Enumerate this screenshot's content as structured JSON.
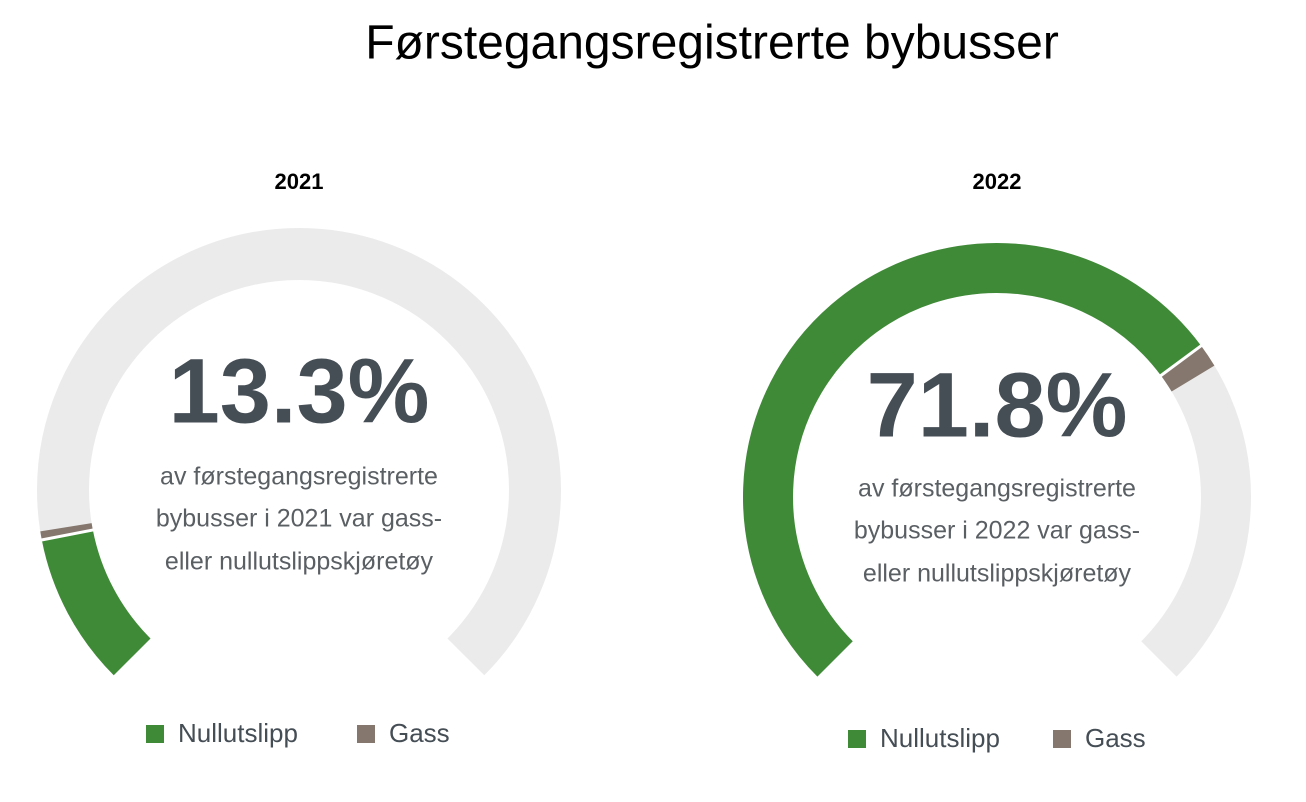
{
  "title": "Førstegangsregistrerte bybusser",
  "chart_data": [
    {
      "type": "gauge",
      "title": "2021",
      "total": {
        "value": 13.3,
        "label": "13.3%"
      },
      "description": [
        "av førstegangsregistrerte",
        "bybusser i 2021 var gass-",
        "eller nullutslippskjøretøy"
      ],
      "categories": [
        "Nullutslipp",
        "Gass"
      ],
      "values": [
        12.6,
        0.7
      ],
      "colors": [
        "#3f8a37",
        "#85776d"
      ],
      "track_color": "#ebebeb",
      "ylim": [
        0,
        100
      ]
    },
    {
      "type": "gauge",
      "title": "2022",
      "total": {
        "value": 71.8,
        "label": "71.8%"
      },
      "description": [
        "av førstegangsregistrerte",
        "bybusser i 2022 var gass-",
        "eller nullutslippskjøretøy"
      ],
      "categories": [
        "Nullutslipp",
        "Gass"
      ],
      "values": [
        69.8,
        2.0
      ],
      "colors": [
        "#3f8a37",
        "#85776d"
      ],
      "track_color": "#ebebeb",
      "ylim": [
        0,
        100
      ]
    }
  ]
}
